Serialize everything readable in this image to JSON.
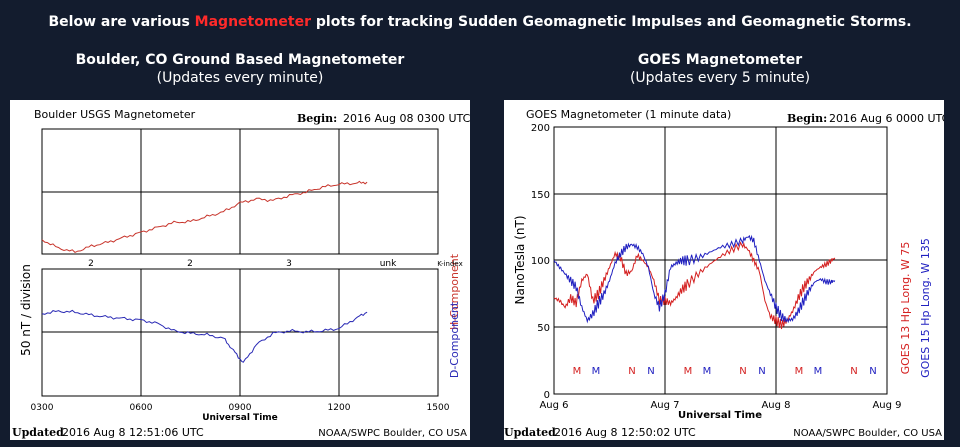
{
  "headline": {
    "before": "Below are various ",
    "accent": "Magnetometer",
    "after": " plots for tracking Sudden Geomagnetic Impulses and Geomagnetic Storms."
  },
  "colors": {
    "background": "#131c2e",
    "accent_red": "#ff2a2a",
    "h_component": "#c8352c",
    "d_component": "#2a2ab5",
    "goes13": "#d42020",
    "goes15": "#2020c0"
  },
  "boulder": {
    "heading": "Boulder, CO Ground Based Magnetometer",
    "subheading": "(Updates every minute)",
    "plot_title": "Boulder USGS Magnetometer",
    "begin_label": "Begin:",
    "begin_value": "2016 Aug 08 0300 UTC",
    "ylabel": "50 nT / division",
    "h_label": "H-Component",
    "d_label": "D-Component",
    "kindex_values": [
      "2",
      "2",
      "3",
      "unk"
    ],
    "kindex_label": "K-index",
    "x_ticks": [
      "0300",
      "0600",
      "0900",
      "1200",
      "1500"
    ],
    "xlabel": "Universal Time",
    "updated_label": "Updated",
    "updated_value": "2016 Aug  8 12:51:06 UTC",
    "footer": "NOAA/SWPC Boulder, CO USA"
  },
  "goes": {
    "heading": "GOES Magnetometer",
    "subheading": "(Updates every 5 minute)",
    "plot_title": "GOES Magnetometer (1 minute data)",
    "begin_label": "Begin:",
    "begin_value": "2016 Aug 6 0000 UTC",
    "ylabel": "NanoTesla (nT)",
    "y_ticks": [
      "0",
      "50",
      "100",
      "150",
      "200"
    ],
    "x_ticks": [
      "Aug 6",
      "Aug 7",
      "Aug 8",
      "Aug 9"
    ],
    "xlabel": "Universal Time",
    "marker_letters": [
      "M",
      "M",
      "N",
      "N",
      "M",
      "M",
      "N",
      "N",
      "M",
      "M",
      "N",
      "N"
    ],
    "legend_goes13": "GOES 13 Hp  Long. W 75",
    "legend_goes15": "GOES 15 Hp  Long. W 135",
    "updated_label": "Updated",
    "updated_value": "2016 Aug  8 12:50:02 UTC",
    "footer": "NOAA/SWPC Boulder, CO USA"
  },
  "chart_data": [
    {
      "type": "line",
      "title": "Boulder USGS Magnetometer",
      "xlabel": "Universal Time",
      "ylabel": "50 nT / division",
      "x_ticks": [
        "0300",
        "0600",
        "0900",
        "1200",
        "1500"
      ],
      "xlim_hours": [
        3,
        15
      ],
      "series": [
        {
          "name": "H-Component",
          "x": [
            3.0,
            3.5,
            4.0,
            4.5,
            5.0,
            5.5,
            6.0,
            6.5,
            7.0,
            7.5,
            8.0,
            8.5,
            9.0,
            9.5,
            10.0,
            10.5,
            11.0,
            11.5,
            12.0,
            12.5,
            12.85
          ],
          "divisions": [
            0.25,
            0.08,
            0.0,
            0.12,
            0.2,
            0.3,
            0.4,
            0.5,
            0.6,
            0.62,
            0.72,
            0.82,
            1.0,
            1.08,
            1.05,
            1.15,
            1.22,
            1.32,
            1.38,
            1.4,
            1.42
          ]
        },
        {
          "name": "D-Component",
          "x": [
            3.0,
            3.5,
            4.0,
            4.5,
            5.0,
            5.5,
            6.0,
            6.5,
            7.0,
            7.5,
            8.0,
            8.5,
            8.8,
            9.1,
            9.5,
            10.0,
            10.5,
            11.0,
            11.5,
            12.0,
            12.5,
            12.85
          ],
          "divisions": [
            1.35,
            1.4,
            1.38,
            1.32,
            1.28,
            1.25,
            1.22,
            1.15,
            1.0,
            0.95,
            0.92,
            0.85,
            0.6,
            0.35,
            0.72,
            0.95,
            1.0,
            0.98,
            1.0,
            1.05,
            1.25,
            1.38
          ]
        }
      ],
      "kindex": [
        "2",
        "2",
        "3",
        "unk"
      ]
    },
    {
      "type": "line",
      "title": "GOES Magnetometer (1 minute data)",
      "xlabel": "Universal Time",
      "ylabel": "NanoTesla (nT)",
      "ylim": [
        0,
        200
      ],
      "x_ticks": [
        "Aug 6",
        "Aug 7",
        "Aug 8",
        "Aug 9"
      ],
      "xlim_days": [
        0,
        3
      ],
      "series": [
        {
          "name": "GOES 13 Hp  Long. W 75",
          "x": [
            0.0,
            0.05,
            0.1,
            0.15,
            0.2,
            0.25,
            0.3,
            0.35,
            0.4,
            0.45,
            0.5,
            0.55,
            0.6,
            0.65,
            0.7,
            0.75,
            0.8,
            0.85,
            0.9,
            0.95,
            1.0,
            1.05,
            1.1,
            1.15,
            1.2,
            1.3,
            1.4,
            1.5,
            1.6,
            1.7,
            1.75,
            1.8,
            1.85,
            1.9,
            1.95,
            2.0,
            2.05,
            2.1,
            2.15,
            2.2,
            2.25,
            2.3,
            2.35,
            2.4,
            2.45,
            2.5,
            2.53
          ],
          "values": [
            72,
            70,
            65,
            72,
            68,
            85,
            90,
            70,
            75,
            85,
            95,
            105,
            102,
            90,
            92,
            104,
            100,
            95,
            85,
            70,
            70,
            68,
            72,
            78,
            82,
            90,
            97,
            103,
            108,
            112,
            108,
            100,
            92,
            70,
            58,
            55,
            52,
            55,
            62,
            72,
            80,
            86,
            92,
            95,
            97,
            100,
            102
          ]
        },
        {
          "name": "GOES 15 Hp  Long. W 135",
          "x": [
            0.0,
            0.05,
            0.1,
            0.15,
            0.2,
            0.25,
            0.3,
            0.35,
            0.4,
            0.45,
            0.5,
            0.55,
            0.6,
            0.65,
            0.7,
            0.75,
            0.8,
            0.85,
            0.9,
            0.95,
            1.0,
            1.05,
            1.1,
            1.15,
            1.2,
            1.3,
            1.4,
            1.5,
            1.6,
            1.7,
            1.75,
            1.8,
            1.85,
            1.9,
            1.95,
            2.0,
            2.05,
            2.1,
            2.15,
            2.2,
            2.25,
            2.3,
            2.35,
            2.4,
            2.45,
            2.5,
            2.53
          ],
          "values": [
            100,
            95,
            90,
            85,
            80,
            65,
            55,
            60,
            68,
            75,
            85,
            98,
            105,
            110,
            112,
            110,
            105,
            95,
            75,
            65,
            75,
            95,
            98,
            100,
            100,
            102,
            106,
            110,
            112,
            115,
            118,
            115,
            100,
            85,
            75,
            65,
            58,
            55,
            56,
            62,
            70,
            78,
            84,
            86,
            84,
            84,
            85
          ]
        }
      ]
    }
  ]
}
